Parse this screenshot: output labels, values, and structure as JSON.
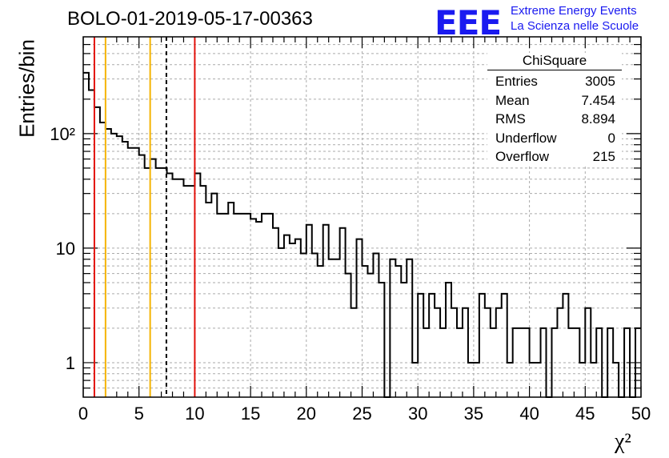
{
  "title": "BOLO-01-2019-05-17-00363",
  "logo": {
    "mark": "EEE",
    "line1": "Extreme Energy Events",
    "line2": "La Scienza nelle Scuole",
    "color": "#1a1af0"
  },
  "stats": {
    "name": "ChiSquare",
    "rows": [
      {
        "label": "Entries",
        "value": "3005"
      },
      {
        "label": "Mean",
        "value": "7.454"
      },
      {
        "label": "RMS",
        "value": "8.894"
      },
      {
        "label": "Underflow",
        "value": "0"
      },
      {
        "label": "Overflow",
        "value": "215"
      }
    ]
  },
  "chart_data": {
    "type": "histogram",
    "title": "BOLO-01-2019-05-17-00363",
    "xlabel": "χ²",
    "ylabel": "Entries/bin",
    "xlim": [
      0,
      50
    ],
    "ylim": [
      0.5,
      700
    ],
    "yscale": "log",
    "grid": true,
    "bin_width": 0.5,
    "x_ticks": [
      0,
      5,
      10,
      15,
      20,
      25,
      30,
      35,
      40,
      45,
      50
    ],
    "x_tick_labels": [
      "0",
      "5",
      "10",
      "15",
      "20",
      "25",
      "30",
      "35",
      "40",
      "45",
      "50"
    ],
    "y_ticks": [
      1,
      10,
      100
    ],
    "y_tick_labels": [
      "1",
      "10",
      "10²"
    ],
    "counts": [
      340,
      240,
      170,
      125,
      110,
      100,
      95,
      85,
      75,
      75,
      65,
      50,
      60,
      50,
      50,
      45,
      40,
      40,
      35,
      35,
      45,
      35,
      25,
      30,
      20,
      20,
      25,
      20,
      20,
      20,
      18,
      17,
      20,
      20,
      15,
      10,
      13,
      11,
      12,
      9,
      16,
      9,
      7,
      16,
      8,
      8,
      15,
      6,
      3,
      12,
      7,
      6,
      9,
      5,
      0,
      8,
      7,
      5,
      8,
      1,
      4,
      2,
      4,
      3,
      2,
      5,
      3,
      2,
      3,
      1,
      1,
      4,
      3,
      2,
      3,
      4,
      1,
      2,
      2,
      2,
      1,
      1,
      2,
      0,
      2,
      3,
      4,
      2,
      2,
      1,
      3,
      1,
      2,
      0.5,
      2,
      1,
      0.5,
      2,
      0.5,
      2
    ],
    "vertical_lines": [
      {
        "x": 1,
        "color": "#e3120b",
        "style": "solid"
      },
      {
        "x": 2,
        "color": "#f5b400",
        "style": "solid"
      },
      {
        "x": 6,
        "color": "#f5b400",
        "style": "solid"
      },
      {
        "x": 7.454,
        "color": "#000000",
        "style": "dashed"
      },
      {
        "x": 10,
        "color": "#e3120b",
        "style": "solid"
      }
    ]
  }
}
